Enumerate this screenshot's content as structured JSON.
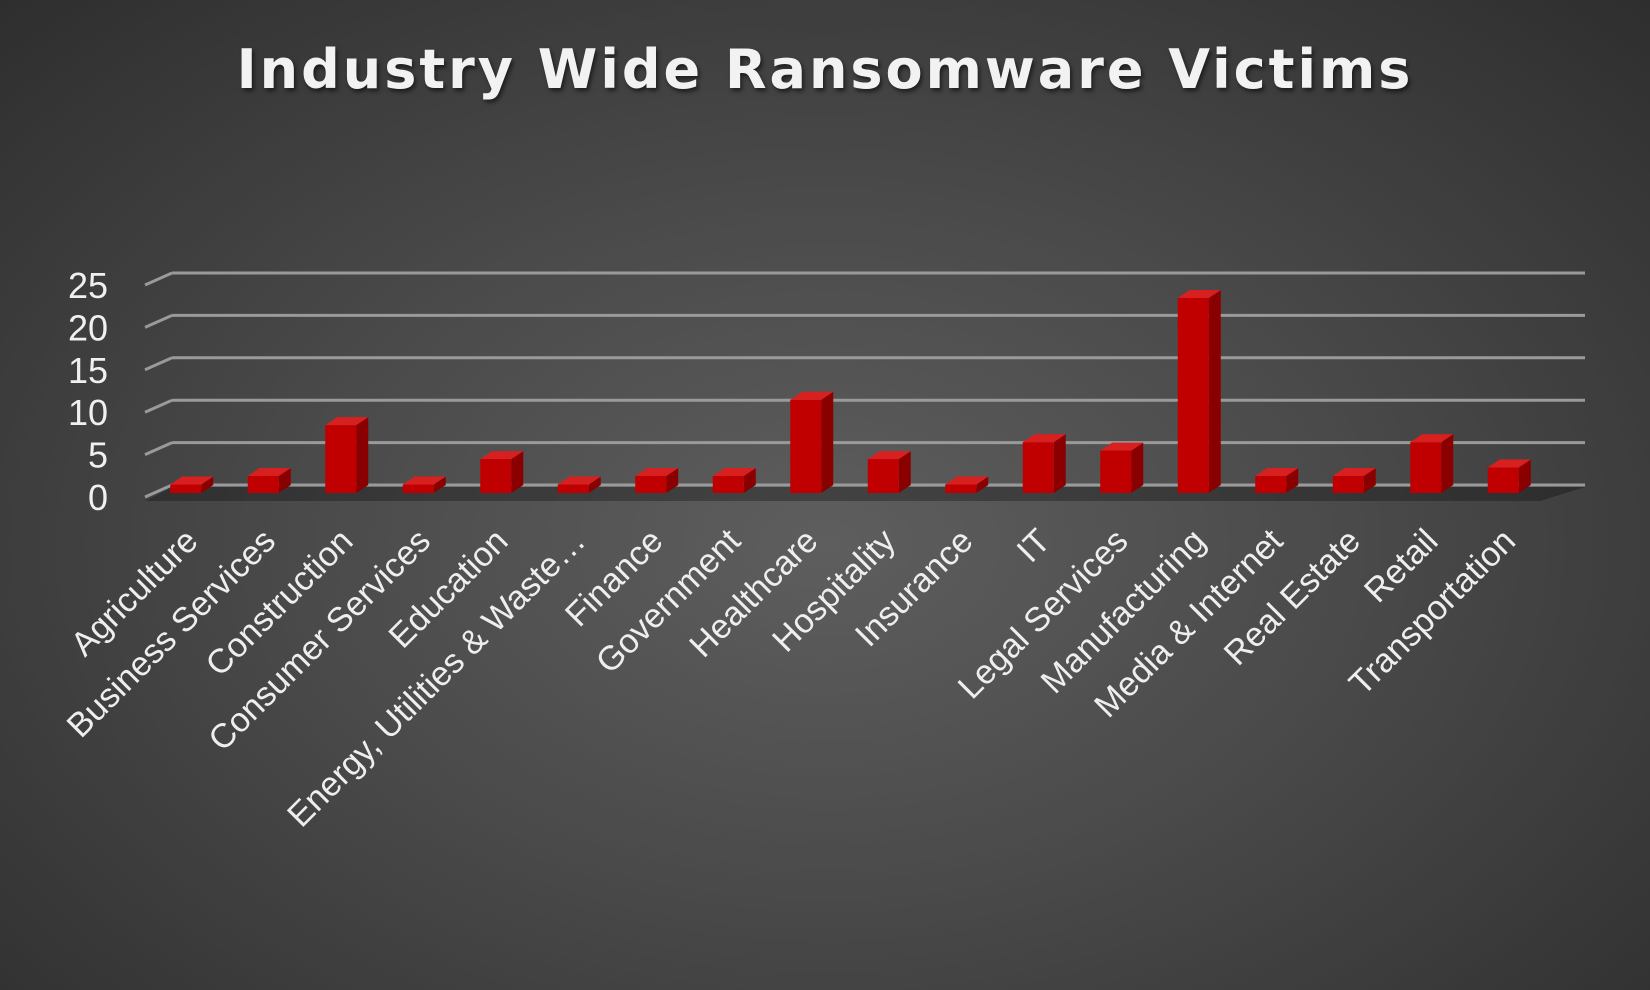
{
  "chart_data": {
    "type": "bar",
    "title": "Industry Wide Ransomware Victims",
    "xlabel": "",
    "ylabel": "",
    "categories": [
      "Agriculture",
      "Business Services",
      "Construction",
      "Consumer Services",
      "Education",
      "Energy, Utilities & Waste…",
      "Finance",
      "Government",
      "Healthcare",
      "Hospitality",
      "Insurance",
      "IT",
      "Legal Services",
      "Manufacturing",
      "Media & Internet",
      "Real Estate",
      "Retail",
      "Transportation"
    ],
    "values": [
      1,
      2,
      8,
      1,
      4,
      1,
      2,
      2,
      11,
      4,
      1,
      6,
      5,
      23,
      2,
      2,
      6,
      3
    ],
    "ylim": [
      0,
      25
    ],
    "yticks": [
      0,
      5,
      10,
      15,
      20,
      25
    ],
    "grid": true,
    "legend": "none",
    "style": "3d-column",
    "colors": {
      "bar_front": "#c00000",
      "bar_side": "#8a0000",
      "bar_top": "#d92020",
      "gridline": "#9a9a9a"
    }
  }
}
